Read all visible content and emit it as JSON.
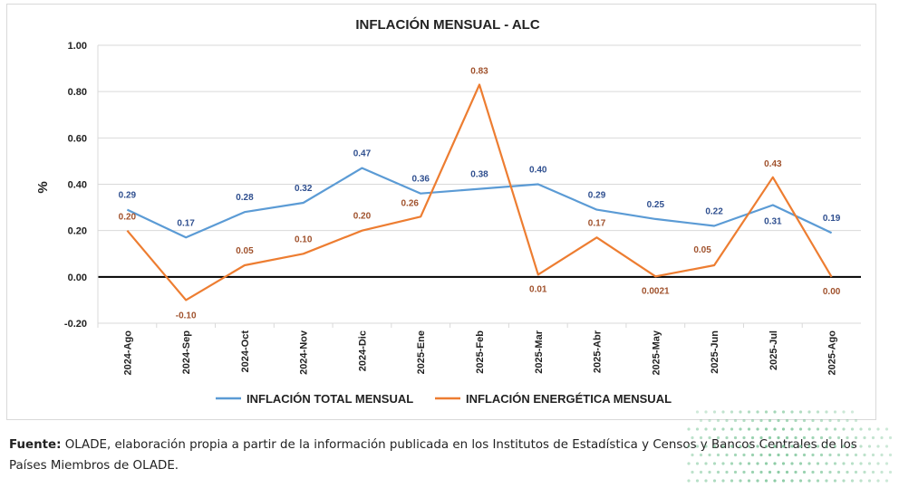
{
  "chart_data": {
    "type": "line",
    "title": "INFLACIÓN MENSUAL - ALC",
    "ylabel": "%",
    "xlabel": "",
    "ylim": [
      -0.2,
      1.0
    ],
    "yticks": [
      "-0.20",
      "0.00",
      "0.20",
      "0.40",
      "0.60",
      "0.80",
      "1.00"
    ],
    "ytick_values": [
      -0.2,
      0.0,
      0.2,
      0.4,
      0.6,
      0.8,
      1.0
    ],
    "grid": "horizontal",
    "legend_position": "bottom",
    "categories": [
      "2024-Ago",
      "2024-Sep",
      "2024-Oct",
      "2024-Nov",
      "2024-Dic",
      "2025-Ene",
      "2025-Feb",
      "2025-Mar",
      "2025-Abr",
      "2025-May",
      "2025-Jun",
      "2025-Jul",
      "2025-Ago"
    ],
    "series": [
      {
        "name": "INFLACIÓN TOTAL MENSUAL",
        "color": "#5B9BD5",
        "label_color": "#2F4F8F",
        "values": [
          0.29,
          0.17,
          0.28,
          0.32,
          0.47,
          0.36,
          0.38,
          0.4,
          0.29,
          0.25,
          0.22,
          0.31,
          0.19
        ],
        "labels": [
          "0.29",
          "0.17",
          "0.28",
          "0.32",
          "0.47",
          "0.36",
          "0.38",
          "0.40",
          "0.29",
          "0.25",
          "0.22",
          "0.31",
          "0.19"
        ]
      },
      {
        "name": "INFLACIÓN ENERGÉTICA MENSUAL",
        "color": "#ED7D31",
        "label_color": "#A0522D",
        "values": [
          0.2,
          -0.1,
          0.05,
          0.1,
          0.2,
          0.26,
          0.83,
          0.01,
          0.17,
          0.0021,
          0.05,
          0.43,
          0.0
        ],
        "labels": [
          "0.20",
          "-0.10",
          "0.05",
          "0.10",
          "0.20",
          "0.26",
          "0.83",
          "0.01",
          "0.17",
          "0.0021",
          "0.05",
          "0.43",
          "0.00"
        ]
      }
    ]
  },
  "source": {
    "label": "Fuente:",
    "text": " OLADE, elaboración propia a partir de la información publicada en los Institutos de Estadística y Censos y Bancos Centrales de los Países Miembros de OLADE."
  },
  "decoration": {
    "dot_color": "#6FBF8E"
  }
}
